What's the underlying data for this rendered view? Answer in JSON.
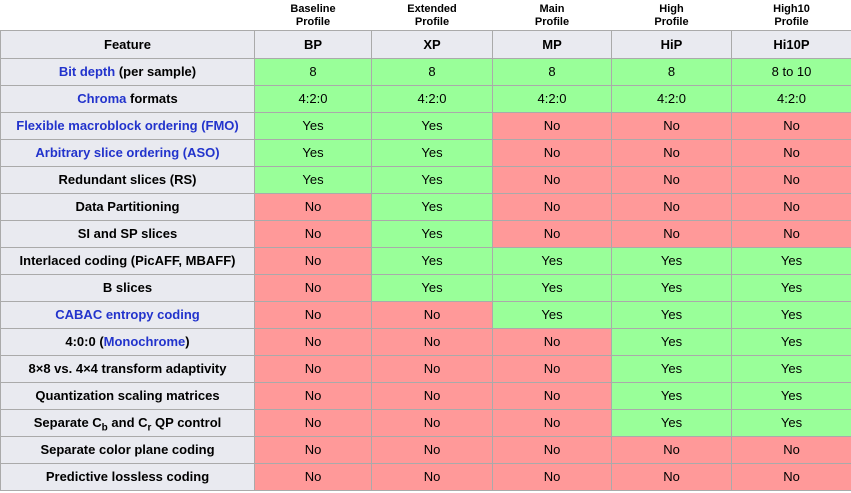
{
  "colors": {
    "yes_bg": "#99ff99",
    "no_bg": "#ff9999",
    "header_bg": "#e9eaf0",
    "border": "#aaaaaa",
    "link_blue": "#2233cc",
    "text": "#000000"
  },
  "chart_data": {
    "type": "table",
    "profile_labels": [
      {
        "line1": "Baseline",
        "line2": "Profile"
      },
      {
        "line1": "Extended",
        "line2": "Profile"
      },
      {
        "line1": "Main",
        "line2": "Profile"
      },
      {
        "line1": "High",
        "line2": "Profile"
      },
      {
        "line1": "High10",
        "line2": "Profile"
      }
    ],
    "columns": [
      "Feature",
      "BP",
      "XP",
      "MP",
      "HiP",
      "Hi10P"
    ],
    "rows": [
      {
        "feature_text": "Bit depth (per sample)",
        "feature_segments": [
          {
            "text": "Bit depth",
            "link": true
          },
          {
            "text": " (per sample)"
          }
        ],
        "cells": [
          {
            "v": "8",
            "ok": true
          },
          {
            "v": "8",
            "ok": true
          },
          {
            "v": "8",
            "ok": true
          },
          {
            "v": "8",
            "ok": true
          },
          {
            "v": "8 to 10",
            "ok": true
          }
        ]
      },
      {
        "feature_text": "Chroma formats",
        "feature_segments": [
          {
            "text": "Chroma",
            "link": true
          },
          {
            "text": " formats"
          }
        ],
        "cells": [
          {
            "v": "4:2:0",
            "ok": true
          },
          {
            "v": "4:2:0",
            "ok": true
          },
          {
            "v": "4:2:0",
            "ok": true
          },
          {
            "v": "4:2:0",
            "ok": true
          },
          {
            "v": "4:2:0",
            "ok": true
          }
        ]
      },
      {
        "feature_text": "Flexible macroblock ordering (FMO)",
        "feature_segments": [
          {
            "text": "Flexible macroblock ordering (FMO)",
            "link": true
          }
        ],
        "cells": [
          {
            "v": "Yes",
            "ok": true
          },
          {
            "v": "Yes",
            "ok": true
          },
          {
            "v": "No",
            "ok": false
          },
          {
            "v": "No",
            "ok": false
          },
          {
            "v": "No",
            "ok": false
          }
        ]
      },
      {
        "feature_text": "Arbitrary slice ordering (ASO)",
        "feature_segments": [
          {
            "text": "Arbitrary slice ordering (ASO)",
            "link": true
          }
        ],
        "cells": [
          {
            "v": "Yes",
            "ok": true
          },
          {
            "v": "Yes",
            "ok": true
          },
          {
            "v": "No",
            "ok": false
          },
          {
            "v": "No",
            "ok": false
          },
          {
            "v": "No",
            "ok": false
          }
        ]
      },
      {
        "feature_text": "Redundant slices (RS)",
        "feature_segments": [
          {
            "text": "Redundant slices (RS)"
          }
        ],
        "cells": [
          {
            "v": "Yes",
            "ok": true
          },
          {
            "v": "Yes",
            "ok": true
          },
          {
            "v": "No",
            "ok": false
          },
          {
            "v": "No",
            "ok": false
          },
          {
            "v": "No",
            "ok": false
          }
        ]
      },
      {
        "feature_text": "Data Partitioning",
        "feature_segments": [
          {
            "text": "Data Partitioning"
          }
        ],
        "cells": [
          {
            "v": "No",
            "ok": false
          },
          {
            "v": "Yes",
            "ok": true
          },
          {
            "v": "No",
            "ok": false
          },
          {
            "v": "No",
            "ok": false
          },
          {
            "v": "No",
            "ok": false
          }
        ]
      },
      {
        "feature_text": "SI and SP slices",
        "feature_segments": [
          {
            "text": "SI and SP slices"
          }
        ],
        "cells": [
          {
            "v": "No",
            "ok": false
          },
          {
            "v": "Yes",
            "ok": true
          },
          {
            "v": "No",
            "ok": false
          },
          {
            "v": "No",
            "ok": false
          },
          {
            "v": "No",
            "ok": false
          }
        ]
      },
      {
        "feature_text": "Interlaced coding (PicAFF, MBAFF)",
        "feature_segments": [
          {
            "text": "Interlaced coding (PicAFF, MBAFF)"
          }
        ],
        "cells": [
          {
            "v": "No",
            "ok": false
          },
          {
            "v": "Yes",
            "ok": true
          },
          {
            "v": "Yes",
            "ok": true
          },
          {
            "v": "Yes",
            "ok": true
          },
          {
            "v": "Yes",
            "ok": true
          }
        ]
      },
      {
        "feature_text": "B slices",
        "feature_segments": [
          {
            "text": "B slices"
          }
        ],
        "cells": [
          {
            "v": "No",
            "ok": false
          },
          {
            "v": "Yes",
            "ok": true
          },
          {
            "v": "Yes",
            "ok": true
          },
          {
            "v": "Yes",
            "ok": true
          },
          {
            "v": "Yes",
            "ok": true
          }
        ]
      },
      {
        "feature_text": "CABAC entropy coding",
        "feature_segments": [
          {
            "text": "CABAC entropy coding",
            "link": true
          }
        ],
        "cells": [
          {
            "v": "No",
            "ok": false
          },
          {
            "v": "No",
            "ok": false
          },
          {
            "v": "Yes",
            "ok": true
          },
          {
            "v": "Yes",
            "ok": true
          },
          {
            "v": "Yes",
            "ok": true
          }
        ]
      },
      {
        "feature_text": "4:0:0 (Monochrome)",
        "feature_segments": [
          {
            "text": "4:0:0 ("
          },
          {
            "text": "Monochrome",
            "link": true
          },
          {
            "text": ")"
          }
        ],
        "cells": [
          {
            "v": "No",
            "ok": false
          },
          {
            "v": "No",
            "ok": false
          },
          {
            "v": "No",
            "ok": false
          },
          {
            "v": "Yes",
            "ok": true
          },
          {
            "v": "Yes",
            "ok": true
          }
        ]
      },
      {
        "feature_text": "8×8 vs. 4×4 transform adaptivity",
        "feature_segments": [
          {
            "text": "8×8 vs. 4×4 transform adaptivity"
          }
        ],
        "cells": [
          {
            "v": "No",
            "ok": false
          },
          {
            "v": "No",
            "ok": false
          },
          {
            "v": "No",
            "ok": false
          },
          {
            "v": "Yes",
            "ok": true
          },
          {
            "v": "Yes",
            "ok": true
          }
        ]
      },
      {
        "feature_text": "Quantization scaling matrices",
        "feature_segments": [
          {
            "text": "Quantization scaling matrices"
          }
        ],
        "cells": [
          {
            "v": "No",
            "ok": false
          },
          {
            "v": "No",
            "ok": false
          },
          {
            "v": "No",
            "ok": false
          },
          {
            "v": "Yes",
            "ok": true
          },
          {
            "v": "Yes",
            "ok": true
          }
        ]
      },
      {
        "feature_text": "Separate Cb and Cr QP control",
        "feature_segments": [
          {
            "text": "Separate C"
          },
          {
            "text": "b",
            "sub": true
          },
          {
            "text": " and C"
          },
          {
            "text": "r",
            "sub": true
          },
          {
            "text": " QP control"
          }
        ],
        "cells": [
          {
            "v": "No",
            "ok": false
          },
          {
            "v": "No",
            "ok": false
          },
          {
            "v": "No",
            "ok": false
          },
          {
            "v": "Yes",
            "ok": true
          },
          {
            "v": "Yes",
            "ok": true
          }
        ]
      },
      {
        "feature_text": "Separate color plane coding",
        "feature_segments": [
          {
            "text": "Separate color plane coding"
          }
        ],
        "cells": [
          {
            "v": "No",
            "ok": false
          },
          {
            "v": "No",
            "ok": false
          },
          {
            "v": "No",
            "ok": false
          },
          {
            "v": "No",
            "ok": false
          },
          {
            "v": "No",
            "ok": false
          }
        ]
      },
      {
        "feature_text": "Predictive lossless coding",
        "feature_segments": [
          {
            "text": "Predictive lossless coding"
          }
        ],
        "cells": [
          {
            "v": "No",
            "ok": false
          },
          {
            "v": "No",
            "ok": false
          },
          {
            "v": "No",
            "ok": false
          },
          {
            "v": "No",
            "ok": false
          },
          {
            "v": "No",
            "ok": false
          }
        ]
      }
    ]
  }
}
